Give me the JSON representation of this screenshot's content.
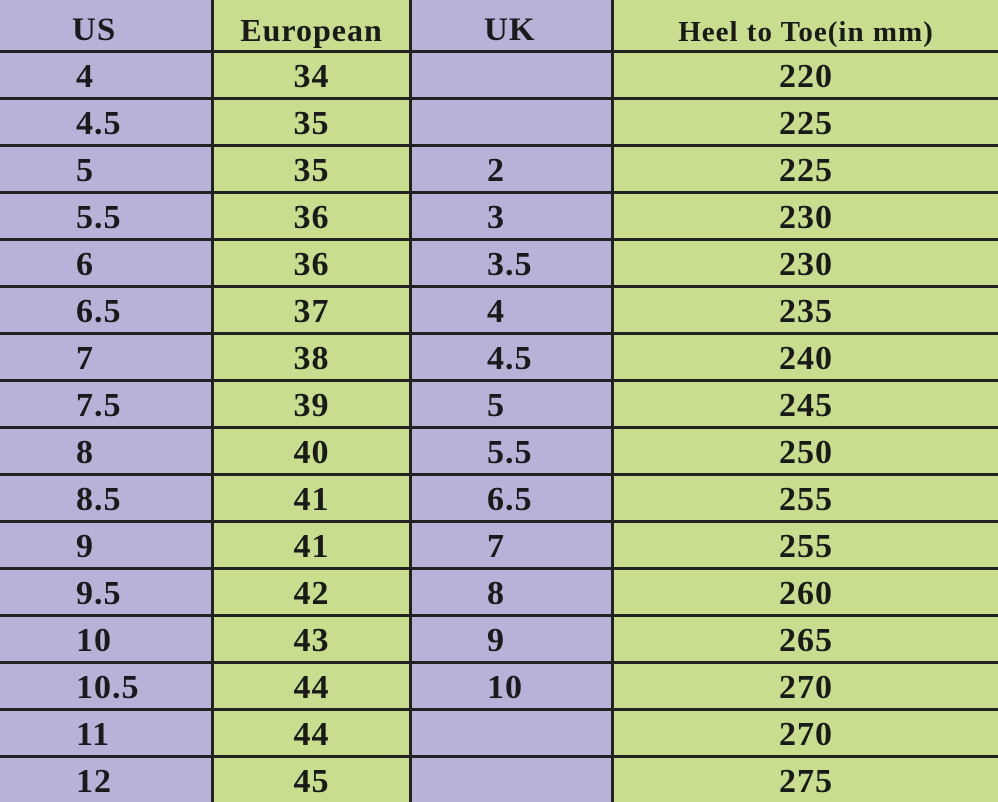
{
  "table": {
    "header": [
      "US",
      "European",
      "UK",
      "Heel to Toe(in mm)"
    ],
    "rows": [
      [
        "4",
        "34",
        null,
        "220"
      ],
      [
        "4.5",
        "35",
        null,
        "225"
      ],
      [
        "5",
        "35",
        "2",
        "225"
      ],
      [
        "5.5",
        "36",
        "3",
        "230"
      ],
      [
        "6",
        "36",
        "3.5",
        "230"
      ],
      [
        "6.5",
        "37",
        "4",
        "235"
      ],
      [
        "7",
        "38",
        "4.5",
        "240"
      ],
      [
        "7.5",
        "39",
        "5",
        "245"
      ],
      [
        "8",
        "40",
        "5.5",
        "250"
      ],
      [
        "8.5",
        "41",
        "6.5",
        "255"
      ],
      [
        "9",
        "41",
        "7",
        "255"
      ],
      [
        "9.5",
        "42",
        "8",
        "260"
      ],
      [
        "10",
        "43",
        "9",
        "265"
      ],
      [
        "10.5",
        "44",
        "10",
        "270"
      ],
      [
        "11",
        "44",
        null,
        "270"
      ],
      [
        "12",
        "45",
        null,
        "275"
      ]
    ]
  }
}
